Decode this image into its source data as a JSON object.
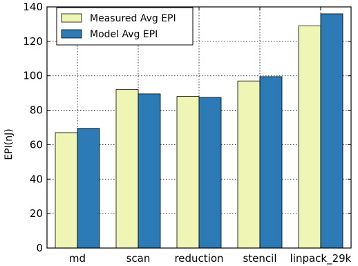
{
  "chart_data": {
    "type": "bar",
    "categories": [
      "md",
      "scan",
      "reduction",
      "stencil",
      "linpack_29k"
    ],
    "series": [
      {
        "name": "Measured Avg EPI",
        "values": [
          67,
          92,
          88,
          97,
          129
        ],
        "color": "#eef5b5"
      },
      {
        "name": "Model Avg EPI",
        "values": [
          69.5,
          89.5,
          87.5,
          99.5,
          136
        ],
        "color": "#2c7bb6"
      }
    ],
    "title": "",
    "xlabel": "",
    "ylabel": "EPI(nJ)",
    "ylim": [
      0,
      140
    ],
    "yticks": [
      0,
      20,
      40,
      60,
      80,
      100,
      120,
      140
    ],
    "grid": true,
    "legend_position": "top-left"
  }
}
